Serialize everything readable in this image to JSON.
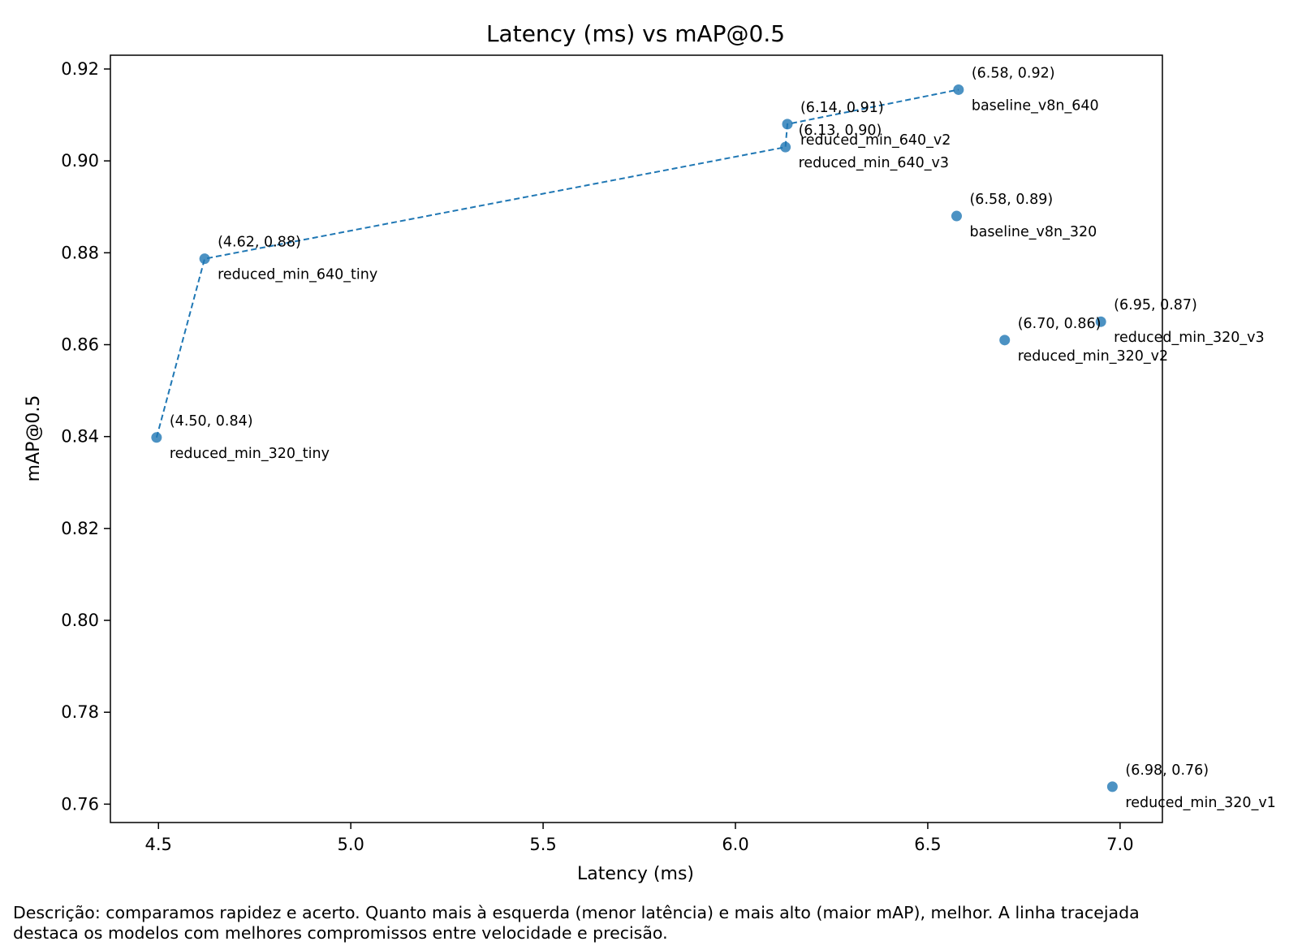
{
  "chart_data": {
    "type": "scatter",
    "title": "Latency (ms) vs mAP@0.5",
    "xlabel": "Latency (ms)",
    "ylabel": "mAP@0.5",
    "xlim": [
      4.375,
      7.11
    ],
    "ylim": [
      0.756,
      0.923
    ],
    "x_ticks": [
      4.5,
      5.0,
      5.5,
      6.0,
      6.5,
      7.0
    ],
    "x_tick_labels": [
      "4.5",
      "5.0",
      "5.5",
      "6.0",
      "6.5",
      "7.0"
    ],
    "y_ticks": [
      0.76,
      0.78,
      0.8,
      0.82,
      0.84,
      0.86,
      0.88,
      0.9,
      0.92
    ],
    "y_tick_labels": [
      "0.76",
      "0.78",
      "0.80",
      "0.82",
      "0.84",
      "0.86",
      "0.88",
      "0.90",
      "0.92"
    ],
    "grid": false,
    "point_color": "#1f77b4",
    "points": [
      {
        "name": "baseline_v8n_640",
        "x": 6.58,
        "y": 0.9155,
        "coord_label": "(6.58, 0.92)"
      },
      {
        "name": "reduced_min_640_v2",
        "x": 6.135,
        "y": 0.908,
        "coord_label": "(6.14, 0.91)"
      },
      {
        "name": "reduced_min_640_v3",
        "x": 6.13,
        "y": 0.903,
        "coord_label": "(6.13, 0.90)"
      },
      {
        "name": "baseline_v8n_320",
        "x": 6.575,
        "y": 0.888,
        "coord_label": "(6.58, 0.89)"
      },
      {
        "name": "reduced_min_640_tiny",
        "x": 4.62,
        "y": 0.8787,
        "coord_label": "(4.62, 0.88)"
      },
      {
        "name": "reduced_min_320_v3",
        "x": 6.95,
        "y": 0.865,
        "coord_label": "(6.95, 0.87)"
      },
      {
        "name": "reduced_min_320_v2",
        "x": 6.7,
        "y": 0.861,
        "coord_label": "(6.70, 0.86)"
      },
      {
        "name": "reduced_min_320_tiny",
        "x": 4.495,
        "y": 0.8398,
        "coord_label": "(4.50, 0.84)"
      },
      {
        "name": "reduced_min_320_v1",
        "x": 6.98,
        "y": 0.7638,
        "coord_label": "(6.98, 0.76)"
      }
    ],
    "pareto_line": {
      "style": "dashed",
      "points": [
        {
          "x": 4.495,
          "y": 0.8398
        },
        {
          "x": 4.62,
          "y": 0.8787
        },
        {
          "x": 6.13,
          "y": 0.903
        },
        {
          "x": 6.135,
          "y": 0.908
        },
        {
          "x": 6.58,
          "y": 0.9155
        }
      ]
    }
  },
  "caption": "Descrição: comparamos rapidez e acerto. Quanto mais à esquerda (menor latência) e mais alto (maior mAP), melhor. A linha tracejada\ndestaca os modelos com melhores compromissos entre velocidade e precisão."
}
